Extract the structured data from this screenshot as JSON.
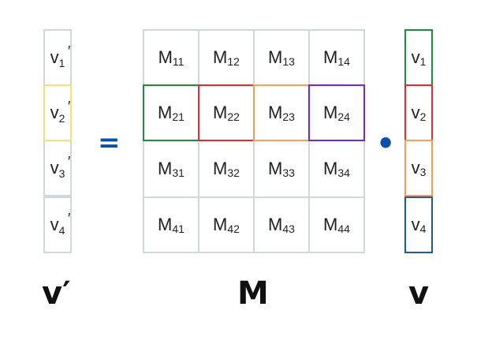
{
  "colors": {
    "grid": "#cfd6dc",
    "operator": "#0a4fa8",
    "row_highlight": "#1e8c3a",
    "v_prime_highlight": "#f4e07a",
    "component_1": "#1e8c3a",
    "component_2": "#e02c2c",
    "component_3": "#f0a05a",
    "component_4": "#6a2bd0",
    "v4_border": "#1f58a0"
  },
  "v_prime": {
    "cells": [
      {
        "sym": "v",
        "sub": "1",
        "prime": "′"
      },
      {
        "sym": "v",
        "sub": "2",
        "prime": "′"
      },
      {
        "sym": "v",
        "sub": "3",
        "prime": "′"
      },
      {
        "sym": "v",
        "sub": "4",
        "prime": "′"
      }
    ],
    "label": "v′"
  },
  "equals": "=",
  "matrix": {
    "rows": [
      [
        {
          "sym": "M",
          "sub": "11"
        },
        {
          "sym": "M",
          "sub": "12"
        },
        {
          "sym": "M",
          "sub": "13"
        },
        {
          "sym": "M",
          "sub": "14"
        }
      ],
      [
        {
          "sym": "M",
          "sub": "21"
        },
        {
          "sym": "M",
          "sub": "22"
        },
        {
          "sym": "M",
          "sub": "23"
        },
        {
          "sym": "M",
          "sub": "24"
        }
      ],
      [
        {
          "sym": "M",
          "sub": "31"
        },
        {
          "sym": "M",
          "sub": "32"
        },
        {
          "sym": "M",
          "sub": "33"
        },
        {
          "sym": "M",
          "sub": "34"
        }
      ],
      [
        {
          "sym": "M",
          "sub": "41"
        },
        {
          "sym": "M",
          "sub": "42"
        },
        {
          "sym": "M",
          "sub": "43"
        },
        {
          "sym": "M",
          "sub": "44"
        }
      ]
    ],
    "label": "M"
  },
  "dot": "•",
  "vector": {
    "cells": [
      {
        "sym": "v",
        "sub": "1"
      },
      {
        "sym": "v",
        "sub": "2"
      },
      {
        "sym": "v",
        "sub": "3"
      },
      {
        "sym": "v",
        "sub": "4"
      }
    ],
    "label": "v"
  }
}
